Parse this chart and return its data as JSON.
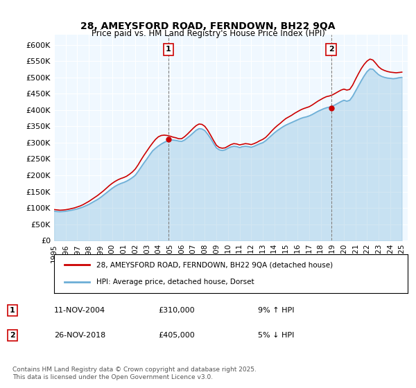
{
  "title": "28, AMEYSFORD ROAD, FERNDOWN, BH22 9QA",
  "subtitle": "Price paid vs. HM Land Registry's House Price Index (HPI)",
  "ylabel_prefix": "£",
  "yticks": [
    0,
    50000,
    100000,
    150000,
    200000,
    250000,
    300000,
    350000,
    400000,
    450000,
    500000,
    550000,
    600000
  ],
  "ytick_labels": [
    "£0",
    "£50K",
    "£100K",
    "£150K",
    "£200K",
    "£250K",
    "£300K",
    "£350K",
    "£400K",
    "£450K",
    "£500K",
    "£550K",
    "£600K"
  ],
  "xlim_start": 1995.0,
  "xlim_end": 2025.5,
  "ylim_min": 0,
  "ylim_max": 630000,
  "sale1_x": 2004.865,
  "sale1_y": 310000,
  "sale1_label": "1",
  "sale1_date": "11-NOV-2004",
  "sale1_price": "£310,000",
  "sale1_hpi": "9% ↑ HPI",
  "sale2_x": 2018.9,
  "sale2_y": 405000,
  "sale2_label": "2",
  "sale2_date": "26-NOV-2018",
  "sale2_price": "£405,000",
  "sale2_hpi": "5% ↓ HPI",
  "hpi_color": "#6baed6",
  "price_color": "#cc0000",
  "legend_label1": "28, AMEYSFORD ROAD, FERNDOWN, BH22 9QA (detached house)",
  "legend_label2": "HPI: Average price, detached house, Dorset",
  "footer": "Contains HM Land Registry data © Crown copyright and database right 2025.\nThis data is licensed under the Open Government Licence v3.0.",
  "background_color": "#ffffff",
  "plot_bg_color": "#f0f8ff",
  "hpi_data_x": [
    1995.0,
    1995.25,
    1995.5,
    1995.75,
    1996.0,
    1996.25,
    1996.5,
    1996.75,
    1997.0,
    1997.25,
    1997.5,
    1997.75,
    1998.0,
    1998.25,
    1998.5,
    1998.75,
    1999.0,
    1999.25,
    1999.5,
    1999.75,
    2000.0,
    2000.25,
    2000.5,
    2000.75,
    2001.0,
    2001.25,
    2001.5,
    2001.75,
    2002.0,
    2002.25,
    2002.5,
    2002.75,
    2003.0,
    2003.25,
    2003.5,
    2003.75,
    2004.0,
    2004.25,
    2004.5,
    2004.75,
    2005.0,
    2005.25,
    2005.5,
    2005.75,
    2006.0,
    2006.25,
    2006.5,
    2006.75,
    2007.0,
    2007.25,
    2007.5,
    2007.75,
    2008.0,
    2008.25,
    2008.5,
    2008.75,
    2009.0,
    2009.25,
    2009.5,
    2009.75,
    2010.0,
    2010.25,
    2010.5,
    2010.75,
    2011.0,
    2011.25,
    2011.5,
    2011.75,
    2012.0,
    2012.25,
    2012.5,
    2012.75,
    2013.0,
    2013.25,
    2013.5,
    2013.75,
    2014.0,
    2014.25,
    2014.5,
    2014.75,
    2015.0,
    2015.25,
    2015.5,
    2015.75,
    2016.0,
    2016.25,
    2016.5,
    2016.75,
    2017.0,
    2017.25,
    2017.5,
    2017.75,
    2018.0,
    2018.25,
    2018.5,
    2018.75,
    2019.0,
    2019.25,
    2019.5,
    2019.75,
    2020.0,
    2020.25,
    2020.5,
    2020.75,
    2021.0,
    2021.25,
    2021.5,
    2021.75,
    2022.0,
    2022.25,
    2022.5,
    2022.75,
    2023.0,
    2023.25,
    2023.5,
    2023.75,
    2024.0,
    2024.25,
    2024.5,
    2024.75,
    2025.0
  ],
  "hpi_data_y": [
    90000,
    89000,
    88500,
    89000,
    90000,
    91500,
    93000,
    95000,
    97000,
    100000,
    103000,
    107000,
    111000,
    116000,
    121000,
    126000,
    132000,
    139000,
    146000,
    153000,
    160000,
    166000,
    171000,
    175000,
    178000,
    182000,
    187000,
    193000,
    200000,
    212000,
    225000,
    238000,
    250000,
    263000,
    275000,
    283000,
    290000,
    296000,
    301000,
    305000,
    308000,
    308000,
    307000,
    305000,
    304000,
    308000,
    315000,
    322000,
    330000,
    338000,
    343000,
    342000,
    337000,
    326000,
    313000,
    298000,
    284000,
    278000,
    276000,
    278000,
    283000,
    287000,
    289000,
    288000,
    285000,
    288000,
    289000,
    288000,
    286000,
    289000,
    293000,
    297000,
    300000,
    306000,
    314000,
    322000,
    330000,
    337000,
    343000,
    349000,
    354000,
    358000,
    362000,
    366000,
    370000,
    374000,
    377000,
    379000,
    382000,
    386000,
    391000,
    396000,
    400000,
    404000,
    407000,
    409000,
    412000,
    416000,
    421000,
    426000,
    430000,
    427000,
    430000,
    442000,
    458000,
    474000,
    490000,
    505000,
    518000,
    526000,
    525000,
    516000,
    508000,
    503000,
    500000,
    498000,
    497000,
    496000,
    497000,
    499000,
    500000
  ],
  "price_data_x": [
    1995.0,
    1995.25,
    1995.5,
    1995.75,
    1996.0,
    1996.25,
    1996.5,
    1996.75,
    1997.0,
    1997.25,
    1997.5,
    1997.75,
    1998.0,
    1998.25,
    1998.5,
    1998.75,
    1999.0,
    1999.25,
    1999.5,
    1999.75,
    2000.0,
    2000.25,
    2000.5,
    2000.75,
    2001.0,
    2001.25,
    2001.5,
    2001.75,
    2002.0,
    2002.25,
    2002.5,
    2002.75,
    2003.0,
    2003.25,
    2003.5,
    2003.75,
    2004.0,
    2004.25,
    2004.5,
    2004.75,
    2005.0,
    2005.25,
    2005.5,
    2005.75,
    2006.0,
    2006.25,
    2006.5,
    2006.75,
    2007.0,
    2007.25,
    2007.5,
    2007.75,
    2008.0,
    2008.25,
    2008.5,
    2008.75,
    2009.0,
    2009.25,
    2009.5,
    2009.75,
    2010.0,
    2010.25,
    2010.5,
    2010.75,
    2011.0,
    2011.25,
    2011.5,
    2011.75,
    2012.0,
    2012.25,
    2012.5,
    2012.75,
    2013.0,
    2013.25,
    2013.5,
    2013.75,
    2014.0,
    2014.25,
    2014.5,
    2014.75,
    2015.0,
    2015.25,
    2015.5,
    2015.75,
    2016.0,
    2016.25,
    2016.5,
    2016.75,
    2017.0,
    2017.25,
    2017.5,
    2017.75,
    2018.0,
    2018.25,
    2018.5,
    2018.75,
    2019.0,
    2019.25,
    2019.5,
    2019.75,
    2020.0,
    2020.25,
    2020.5,
    2020.75,
    2021.0,
    2021.25,
    2021.5,
    2021.75,
    2022.0,
    2022.25,
    2022.5,
    2022.75,
    2023.0,
    2023.25,
    2023.5,
    2023.75,
    2024.0,
    2024.25,
    2024.5,
    2024.75,
    2025.0
  ],
  "price_data_y": [
    95000,
    94000,
    93000,
    93500,
    94500,
    96000,
    98000,
    100000,
    103000,
    106000,
    110000,
    115000,
    120000,
    126000,
    132000,
    138000,
    145000,
    152000,
    160000,
    168000,
    175000,
    181000,
    186000,
    190000,
    193000,
    197000,
    203000,
    210000,
    219000,
    232000,
    247000,
    261000,
    274000,
    287000,
    299000,
    310000,
    318000,
    322000,
    323000,
    322000,
    320000,
    317000,
    315000,
    312000,
    312000,
    318000,
    326000,
    335000,
    344000,
    352000,
    357000,
    356000,
    350000,
    338000,
    323000,
    307000,
    292000,
    285000,
    283000,
    284000,
    289000,
    294000,
    297000,
    296000,
    293000,
    295000,
    297000,
    296000,
    294000,
    297000,
    301000,
    306000,
    310000,
    316000,
    325000,
    335000,
    344000,
    352000,
    359000,
    367000,
    374000,
    379000,
    384000,
    390000,
    395000,
    400000,
    404000,
    407000,
    410000,
    415000,
    421000,
    427000,
    432000,
    437000,
    441000,
    443000,
    446000,
    451000,
    456000,
    461000,
    464000,
    461000,
    463000,
    476000,
    494000,
    511000,
    527000,
    540000,
    550000,
    556000,
    553000,
    543000,
    532000,
    525000,
    521000,
    518000,
    516000,
    515000,
    514000,
    515000,
    516000
  ]
}
